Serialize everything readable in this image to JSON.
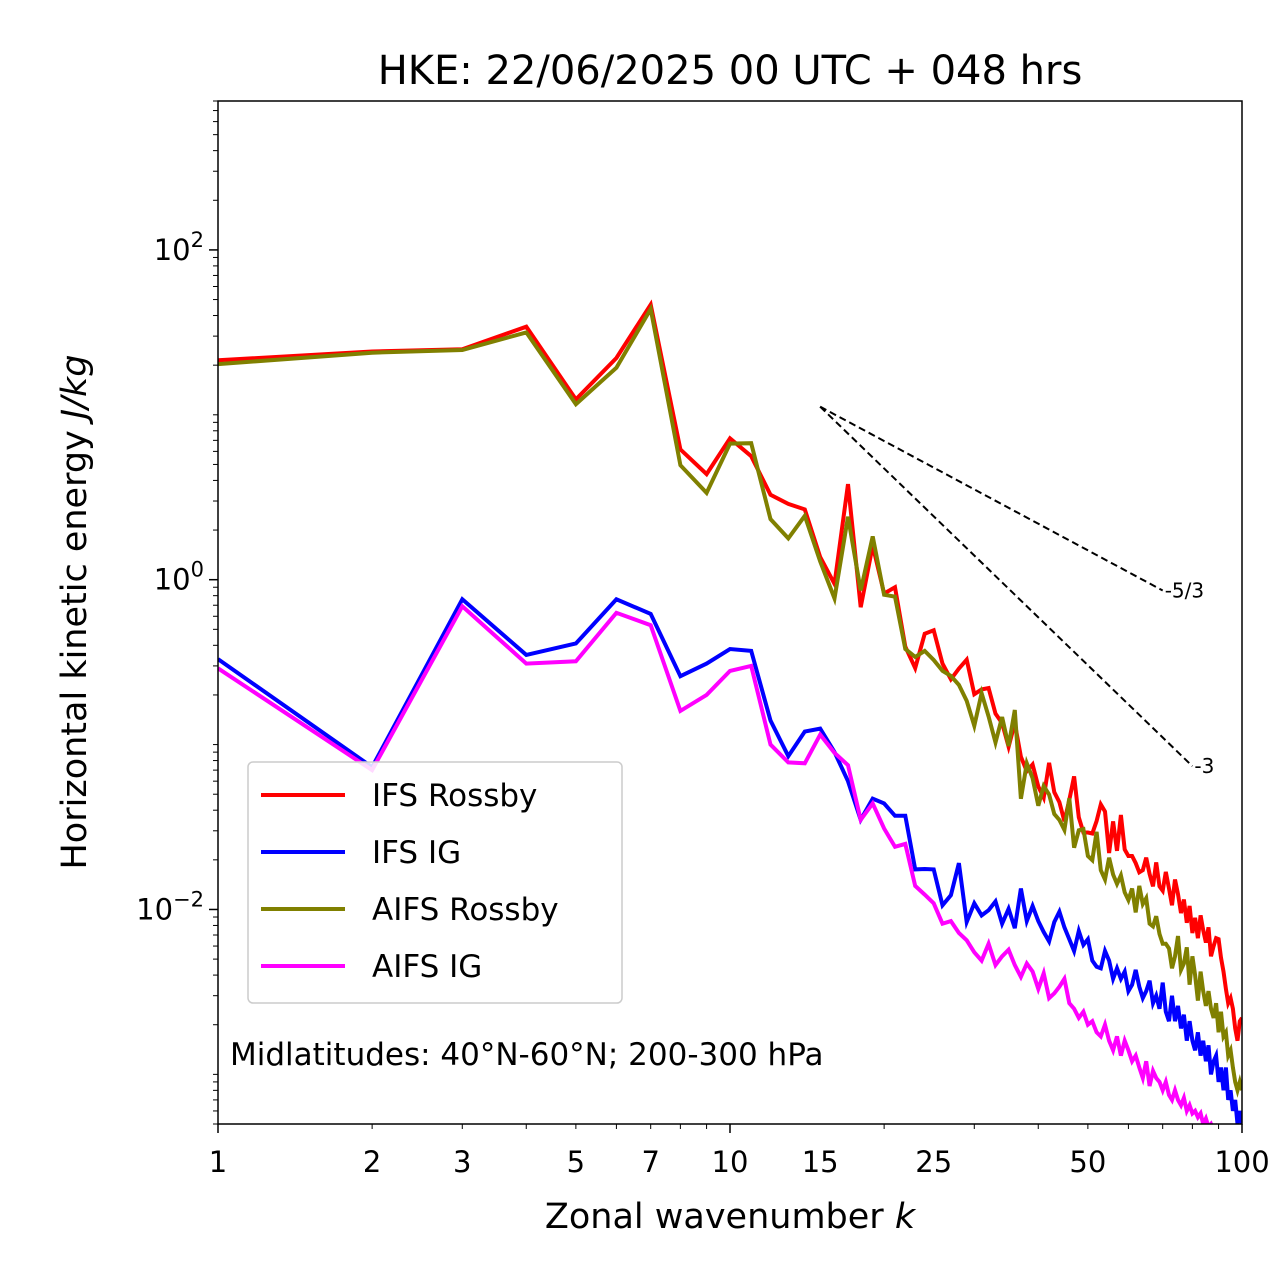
{
  "chart_data": {
    "type": "line",
    "title": "HKE: 22/06/2025 00 UTC + 048 hrs",
    "xlabel_text": "Zonal wavenumber ",
    "xlabel_var": "k",
    "ylabel_text": "Horizontal kinetic energy ",
    "ylabel_unit": "J/kg",
    "xscale": "log",
    "yscale": "log",
    "xlim": [
      1,
      100
    ],
    "ylim": [
      0.0005,
      800
    ],
    "xticks": [
      1,
      2,
      3,
      5,
      7,
      10,
      15,
      25,
      50,
      100
    ],
    "xtick_labels": [
      "1",
      "2",
      "3",
      "5",
      "7",
      "10",
      "15",
      "25",
      "50",
      "100"
    ],
    "yticks": [
      {
        "value": 100,
        "base": "10",
        "exp": "2"
      },
      {
        "value": 1,
        "base": "10",
        "exp": "0"
      },
      {
        "value": 0.01,
        "base": "10",
        "exp": "−2"
      }
    ],
    "grid": false,
    "legend_position": "lower-left",
    "annotation": "Midlatitudes: 40°N-60°N; 200-300 hPa",
    "reference_slopes": [
      {
        "label": "-5/3",
        "x": [
          15,
          70
        ],
        "y": [
          11.2,
          0.86
        ]
      },
      {
        "label": "-3",
        "x": [
          15,
          80
        ],
        "y": [
          11.2,
          0.074
        ]
      }
    ],
    "series": [
      {
        "name": "IFS Rossby",
        "color": "#ff0000",
        "x": [
          1,
          2,
          3,
          4,
          5,
          6,
          7,
          8,
          9,
          10,
          11,
          12,
          13,
          14,
          15,
          16,
          17,
          18,
          19,
          20,
          21,
          22,
          23,
          24,
          25,
          26,
          27,
          28,
          29,
          30,
          31,
          32,
          33,
          34,
          35,
          36,
          37,
          38,
          39,
          40,
          41,
          42,
          43,
          44,
          45,
          46,
          47,
          48,
          49,
          50,
          51,
          52,
          53,
          54,
          55,
          56,
          57,
          58,
          59,
          60,
          61,
          62,
          63,
          64,
          65,
          66,
          67,
          68,
          69,
          70,
          71,
          72,
          73,
          74,
          75,
          76,
          77,
          78,
          79,
          80,
          81,
          82,
          83,
          84,
          85,
          86,
          87,
          88,
          89,
          90,
          91,
          92,
          93,
          94,
          95,
          96,
          97,
          98,
          99,
          100
        ],
        "y": [
          21.4,
          24.2,
          25,
          34.2,
          12.4,
          22.1,
          46.6,
          6.17,
          4.37,
          7.2,
          5.61,
          3.27,
          2.88,
          2.67,
          1.37,
          0.943,
          3.8,
          0.681,
          1.61,
          0.825,
          0.899,
          0.393,
          0.291,
          0.47,
          0.493,
          0.31,
          0.249,
          0.289,
          0.327,
          0.202,
          0.216,
          0.22,
          0.154,
          0.135,
          0.097,
          0.135,
          0.0844,
          0.069,
          0.0757,
          0.0557,
          0.0477,
          0.0775,
          0.0514,
          0.0447,
          0.0343,
          0.0462,
          0.0641,
          0.0362,
          0.0293,
          0.0293,
          0.0289,
          0.0344,
          0.0434,
          0.0393,
          0.022,
          0.0342,
          0.0227,
          0.0374,
          0.0231,
          0.0211,
          0.0211,
          0.0191,
          0.0168,
          0.0173,
          0.0206,
          0.0164,
          0.0138,
          0.0193,
          0.0138,
          0.013,
          0.0169,
          0.0134,
          0.0106,
          0.0152,
          0.0124,
          0.0095,
          0.0115,
          0.0083,
          0.0105,
          0.0072,
          0.0089,
          0.0067,
          0.0092,
          0.0075,
          0.0063,
          0.0078,
          0.0052,
          0.006,
          0.0067,
          0.0066,
          0.0051,
          0.0042,
          0.0033,
          0.0027,
          0.0029,
          0.0025,
          0.0019,
          0.0016,
          0.0021,
          0.0022
        ]
      },
      {
        "name": "IFS IG",
        "color": "#0000ff",
        "x": [
          1,
          2,
          3,
          4,
          5,
          6,
          7,
          8,
          9,
          10,
          11,
          12,
          13,
          14,
          15,
          16,
          17,
          18,
          19,
          20,
          21,
          22,
          23,
          24,
          25,
          26,
          27,
          28,
          29,
          30,
          31,
          32,
          33,
          34,
          35,
          36,
          37,
          38,
          39,
          40,
          41,
          42,
          43,
          44,
          45,
          46,
          47,
          48,
          49,
          50,
          51,
          52,
          53,
          54,
          55,
          56,
          57,
          58,
          59,
          60,
          61,
          62,
          63,
          64,
          65,
          66,
          67,
          68,
          69,
          70,
          71,
          72,
          73,
          74,
          75,
          76,
          77,
          78,
          79,
          80,
          81,
          82,
          83,
          84,
          85,
          86,
          87,
          88,
          89,
          90,
          91,
          92,
          93,
          94,
          95,
          96,
          97,
          98,
          99,
          100
        ],
        "y": [
          0.33,
          0.073,
          0.76,
          0.35,
          0.41,
          0.76,
          0.62,
          0.26,
          0.31,
          0.38,
          0.37,
          0.14,
          0.085,
          0.12,
          0.125,
          0.09,
          0.06,
          0.035,
          0.047,
          0.044,
          0.037,
          0.037,
          0.0175,
          0.0176,
          0.0175,
          0.0106,
          0.0122,
          0.0191,
          0.0084,
          0.0109,
          0.0092,
          0.0099,
          0.0112,
          0.0082,
          0.0101,
          0.0077,
          0.0134,
          0.0085,
          0.0105,
          0.0085,
          0.0073,
          0.0064,
          0.0084,
          0.0097,
          0.0078,
          0.0066,
          0.0056,
          0.0074,
          0.0061,
          0.0066,
          0.0049,
          0.0045,
          0.0044,
          0.0056,
          0.0049,
          0.0038,
          0.0044,
          0.0038,
          0.0042,
          0.0032,
          0.0035,
          0.0043,
          0.0034,
          0.0029,
          0.0032,
          0.0037,
          0.0027,
          0.003,
          0.0025,
          0.0036,
          0.0024,
          0.0021,
          0.003,
          0.0021,
          0.0026,
          0.0019,
          0.0023,
          0.0016,
          0.0021,
          0.0016,
          0.0014,
          0.0018,
          0.0013,
          0.0016,
          0.0012,
          0.0015,
          0.001,
          0.0012,
          0.0013,
          0.0009,
          0.0011,
          0.0008,
          0.0011,
          0.0007,
          0.0008,
          0.0006,
          0.0007,
          0.0005,
          0.0006,
          0.0005
        ]
      },
      {
        "name": "AIFS Rossby",
        "color": "#808000",
        "x": [
          1,
          2,
          3,
          4,
          5,
          6,
          7,
          8,
          9,
          10,
          11,
          12,
          13,
          14,
          15,
          16,
          17,
          18,
          19,
          20,
          21,
          22,
          23,
          24,
          25,
          26,
          27,
          28,
          29,
          30,
          31,
          32,
          33,
          34,
          35,
          36,
          37,
          38,
          39,
          40,
          41,
          42,
          43,
          44,
          45,
          46,
          47,
          48,
          49,
          50,
          51,
          52,
          53,
          54,
          55,
          56,
          57,
          58,
          59,
          60,
          61,
          62,
          63,
          64,
          65,
          66,
          67,
          68,
          69,
          70,
          71,
          72,
          73,
          74,
          75,
          76,
          77,
          78,
          79,
          80,
          81,
          82,
          83,
          84,
          85,
          86,
          87,
          88,
          89,
          90,
          91,
          92,
          93,
          94,
          95,
          96,
          97,
          98,
          99,
          100
        ],
        "y": [
          20.3,
          23.8,
          24.7,
          31.6,
          11.6,
          19.3,
          43.8,
          4.95,
          3.36,
          6.69,
          6.73,
          2.33,
          1.78,
          2.44,
          1.29,
          0.77,
          2.41,
          0.86,
          1.83,
          0.81,
          0.79,
          0.38,
          0.34,
          0.37,
          0.326,
          0.28,
          0.261,
          0.23,
          0.184,
          0.13,
          0.205,
          0.148,
          0.103,
          0.147,
          0.098,
          0.162,
          0.0469,
          0.077,
          0.0625,
          0.0426,
          0.0561,
          0.0498,
          0.0379,
          0.0349,
          0.0304,
          0.0473,
          0.0237,
          0.0302,
          0.0307,
          0.0211,
          0.0199,
          0.0296,
          0.0173,
          0.0152,
          0.0206,
          0.0163,
          0.0143,
          0.0161,
          0.0127,
          0.0114,
          0.0134,
          0.0096,
          0.0139,
          0.0108,
          0.0117,
          0.0082,
          0.0079,
          0.0091,
          0.0071,
          0.0062,
          0.0062,
          0.0058,
          0.0044,
          0.0052,
          0.0069,
          0.0043,
          0.0047,
          0.0059,
          0.0035,
          0.0052,
          0.004,
          0.0028,
          0.0042,
          0.0032,
          0.0026,
          0.0032,
          0.0025,
          0.0022,
          0.0027,
          0.0018,
          0.0024,
          0.0017,
          0.0018,
          0.0013,
          0.0014,
          0.0011,
          0.0009,
          0.0008,
          0.0009,
          0.0008
        ]
      },
      {
        "name": "AIFS IG",
        "color": "#ff00ff",
        "x": [
          1,
          2,
          3,
          4,
          5,
          6,
          7,
          8,
          9,
          10,
          11,
          12,
          13,
          14,
          15,
          16,
          17,
          18,
          19,
          20,
          21,
          22,
          23,
          24,
          25,
          26,
          27,
          28,
          29,
          30,
          31,
          32,
          33,
          34,
          35,
          36,
          37,
          38,
          39,
          40,
          41,
          42,
          43,
          44,
          45,
          46,
          47,
          48,
          49,
          50,
          51,
          52,
          53,
          54,
          55,
          56,
          57,
          58,
          59,
          60,
          61,
          62,
          63,
          64,
          65,
          66,
          67,
          68,
          69,
          70,
          71,
          72,
          73,
          74,
          75,
          76,
          77,
          78,
          79,
          80,
          81,
          82,
          83,
          84,
          85,
          86,
          87,
          88,
          89,
          90,
          91,
          92,
          93,
          94,
          95,
          96,
          97,
          98,
          99,
          100
        ],
        "y": [
          0.29,
          0.07,
          0.69,
          0.31,
          0.32,
          0.63,
          0.53,
          0.16,
          0.2,
          0.28,
          0.3,
          0.1,
          0.078,
          0.077,
          0.115,
          0.089,
          0.075,
          0.035,
          0.044,
          0.031,
          0.024,
          0.025,
          0.0139,
          0.0123,
          0.0109,
          0.0082,
          0.0085,
          0.0072,
          0.0065,
          0.0055,
          0.0049,
          0.0062,
          0.0046,
          0.0052,
          0.0057,
          0.0046,
          0.0039,
          0.0047,
          0.0042,
          0.0033,
          0.0041,
          0.0029,
          0.0031,
          0.0034,
          0.0038,
          0.0027,
          0.0025,
          0.0022,
          0.0024,
          0.002,
          0.0021,
          0.0018,
          0.0017,
          0.002,
          0.0016,
          0.0014,
          0.0017,
          0.0013,
          0.0016,
          0.0014,
          0.0012,
          0.0013,
          0.0011,
          0.00095,
          0.0012,
          0.00085,
          0.00105,
          0.00095,
          0.0009,
          0.0008,
          0.0009,
          0.00075,
          0.0007,
          0.0008,
          0.0007,
          0.00065,
          0.00072,
          0.0006,
          0.00065,
          0.00058,
          0.0006,
          0.00055,
          0.00058,
          0.0005,
          0.00054,
          0.00048,
          0.0005,
          0.00046,
          0.00048,
          0.00044,
          0.00046,
          0.00042,
          0.00044,
          0.0004,
          0.00042,
          0.00038,
          0.0004,
          0.00036,
          0.00038,
          0.00034
        ]
      }
    ]
  }
}
